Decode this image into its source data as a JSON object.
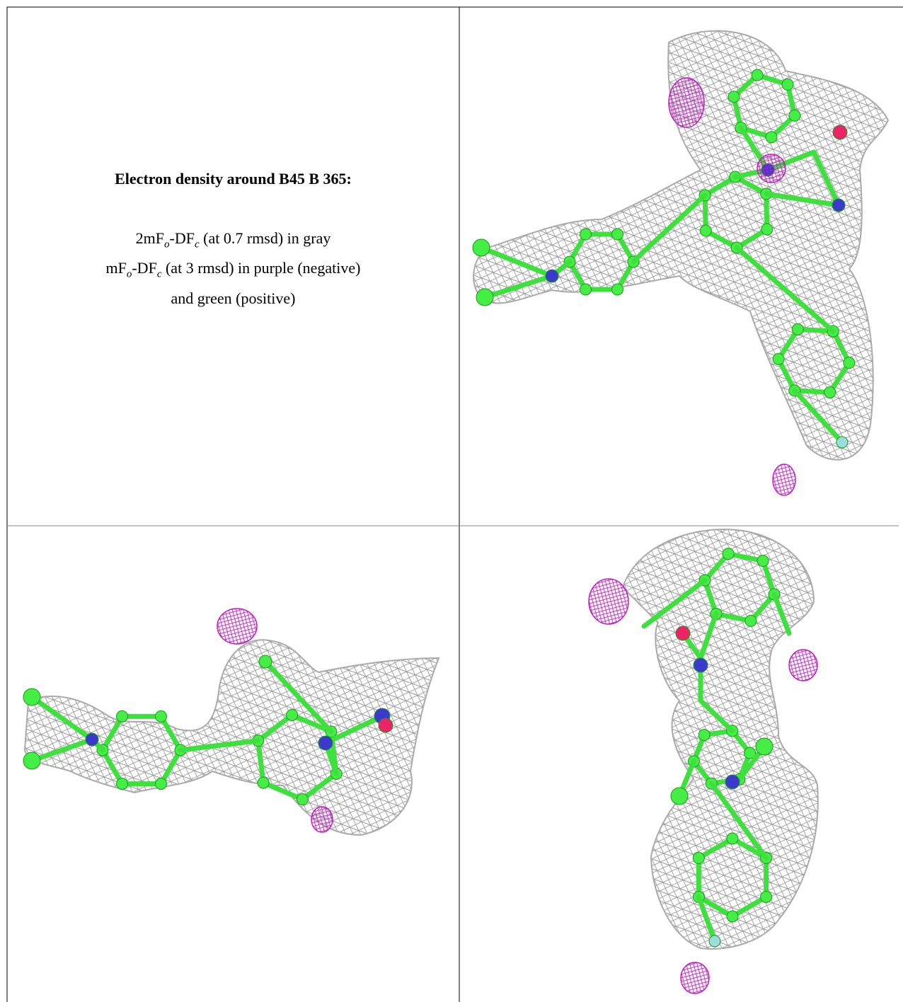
{
  "caption": {
    "title": "Electron density around B45 B 365:",
    "lines": [
      [
        "2mF",
        "o",
        "-DF",
        "c",
        " (at 0.7 rmsd) in gray"
      ],
      [
        "mF",
        "o",
        "-DF",
        "c",
        " (at 3 rmsd) in purple (negative)"
      ],
      [
        "and green (positive)"
      ]
    ]
  }
}
